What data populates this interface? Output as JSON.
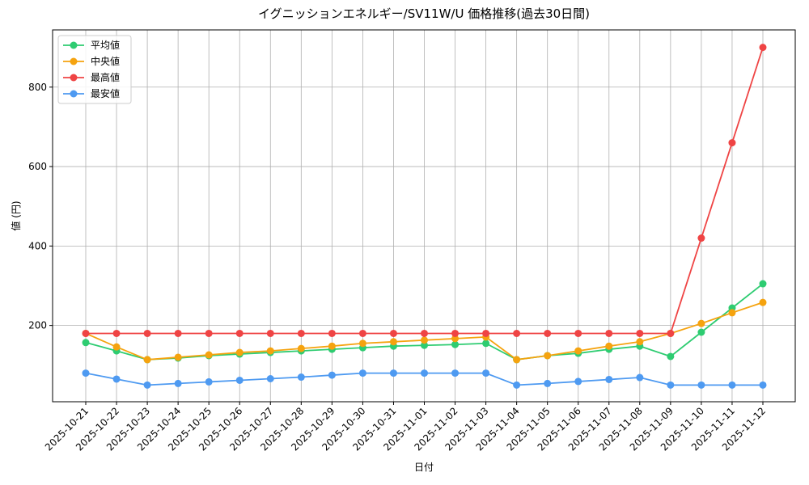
{
  "chart_data": {
    "type": "line",
    "title": "イグニッションエネルギー/SV11W/U 価格推移(過去30日間)",
    "x_label": "日付",
    "y_label": "値 (円)",
    "categories": [
      "2025-10-21",
      "2025-10-22",
      "2025-10-23",
      "2025-10-24",
      "2025-10-25",
      "2025-10-26",
      "2025-10-27",
      "2025-10-28",
      "2025-10-29",
      "2025-10-30",
      "2025-10-31",
      "2025-11-01",
      "2025-11-02",
      "2025-11-03",
      "2025-11-04",
      "2025-11-05",
      "2025-11-06",
      "2025-11-07",
      "2025-11-08",
      "2025-11-09",
      "2025-11-10",
      "2025-11-11",
      "2025-11-12"
    ],
    "series": [
      {
        "name": "平均値",
        "color": "#2ecc71",
        "values": [
          157,
          136,
          114,
          118,
          124,
          128,
          132,
          136,
          140,
          144,
          148,
          150,
          152,
          155,
          114,
          124,
          130,
          140,
          148,
          122,
          183,
          244,
          305
        ]
      },
      {
        "name": "中央値",
        "color": "#f5a30f",
        "values": [
          180,
          146,
          114,
          120,
          126,
          132,
          136,
          142,
          148,
          155,
          159,
          163,
          167,
          171,
          114,
          124,
          136,
          148,
          159,
          180,
          205,
          232,
          258
        ]
      },
      {
        "name": "最高値",
        "color": "#ef4444",
        "values": [
          180,
          180,
          180,
          180,
          180,
          180,
          180,
          180,
          180,
          180,
          180,
          180,
          180,
          180,
          180,
          180,
          180,
          180,
          180,
          180,
          420,
          660,
          900
        ]
      },
      {
        "name": "最安値",
        "color": "#4e9af1",
        "values": [
          80,
          65,
          50,
          54,
          58,
          62,
          66,
          70,
          75,
          80,
          80,
          80,
          80,
          80,
          50,
          54,
          59,
          64,
          69,
          50,
          50,
          50,
          50
        ]
      }
    ],
    "ylim": [
      8,
      944
    ],
    "yticks": [
      200,
      400,
      600,
      800
    ],
    "grid": true,
    "legend": "upper left"
  }
}
